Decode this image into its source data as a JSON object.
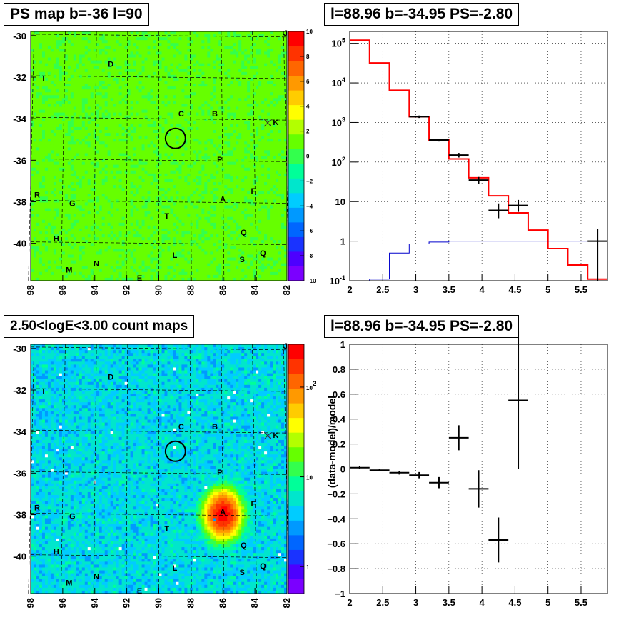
{
  "titles": {
    "map1": "PS map b=-36 l=90",
    "spec1": "l=88.96 b=-34.95 PS=-2.80",
    "map2": "2.50<logE<3.00 count maps",
    "spec2": "l=88.96 b=-34.95 PS=-2.80"
  },
  "chart_data": [
    {
      "type": "heatmap",
      "title": "PS map b=-36 l=90",
      "x_ticks": [
        "98",
        "96",
        "94",
        "92",
        "90",
        "88",
        "86",
        "84",
        "82"
      ],
      "y_ticks": [
        "-30",
        "-32",
        "-34",
        "-36",
        "-38",
        "-40"
      ],
      "xlim": [
        98,
        82
      ],
      "ylim": [
        -41.8,
        -29.8
      ],
      "colorbar_ticks": [
        "10",
        "8",
        "6",
        "4",
        "2",
        "0",
        "−2",
        "−4",
        "−6",
        "−8",
        "−10"
      ],
      "colorbar_range": [
        -10,
        10
      ],
      "typical_value": 1,
      "source_labels": [
        {
          "t": "I",
          "l": 97.2,
          "b": -32.2
        },
        {
          "t": "D",
          "l": 93.0,
          "b": -31.5
        },
        {
          "t": "C",
          "l": 88.6,
          "b": -33.9
        },
        {
          "t": "B",
          "l": 86.5,
          "b": -33.9
        },
        {
          "t": "K",
          "l": 82.7,
          "b": -34.3
        },
        {
          "t": "P",
          "l": 86.2,
          "b": -36.1
        },
        {
          "t": "F",
          "l": 84.1,
          "b": -37.6
        },
        {
          "t": "R",
          "l": 97.6,
          "b": -37.8
        },
        {
          "t": "A",
          "l": 86.0,
          "b": -38.0
        },
        {
          "t": "G",
          "l": 95.4,
          "b": -38.2
        },
        {
          "t": "T",
          "l": 89.5,
          "b": -38.8
        },
        {
          "t": "Q",
          "l": 84.7,
          "b": -39.6
        },
        {
          "t": "H",
          "l": 96.4,
          "b": -39.9
        },
        {
          "t": "L",
          "l": 89.0,
          "b": -40.7
        },
        {
          "t": "S",
          "l": 84.8,
          "b": -40.9
        },
        {
          "t": "Q",
          "l": 83.5,
          "b": -40.6
        },
        {
          "t": "N",
          "l": 93.9,
          "b": -41.1
        },
        {
          "t": "M",
          "l": 95.6,
          "b": -41.4
        },
        {
          "t": "E",
          "l": 91.2,
          "b": -41.8
        },
        {
          "t": "J",
          "l": 82.1,
          "b": -30.0
        }
      ],
      "circle": {
        "l": 88.96,
        "b": -34.95
      }
    },
    {
      "type": "line",
      "title": "l=88.96 b=-34.95 PS=-2.80",
      "x_ticks": [
        "2",
        "2.5",
        "3",
        "3.5",
        "4",
        "4.5",
        "5",
        "5.5"
      ],
      "y_ticks": [
        "10^-1",
        "1",
        "10",
        "10^2",
        "10^3",
        "10^4",
        "10^5"
      ],
      "xlim": [
        2.0,
        5.9
      ],
      "ylim": [
        0.1,
        200000
      ],
      "log_y": true,
      "grid": true,
      "series": [
        {
          "color": "#ff0000",
          "kind": "step",
          "edges": [
            2.0,
            2.3,
            2.6,
            2.9,
            3.2,
            3.5,
            3.8,
            4.1,
            4.4,
            4.7,
            5.0,
            5.3,
            5.6,
            5.9
          ],
          "values": [
            120000,
            32000,
            6500,
            1400,
            360,
            120,
            40,
            14,
            5.2,
            1.9,
            0.65,
            0.25,
            0.11
          ]
        },
        {
          "color": "#0000cc",
          "kind": "step",
          "edges": [
            2.0,
            2.3,
            2.6,
            2.9,
            3.2,
            3.5,
            5.9
          ],
          "values": [
            0.1,
            0.11,
            0.5,
            0.85,
            0.95,
            1.0
          ]
        },
        {
          "color": "#000000",
          "kind": "errorbar",
          "points": [
            {
              "x": 3.05,
              "y": 1400,
              "xerr": 0.15,
              "lo": 1300,
              "hi": 1500
            },
            {
              "x": 3.35,
              "y": 360,
              "xerr": 0.15,
              "lo": 330,
              "hi": 390
            },
            {
              "x": 3.65,
              "y": 150,
              "xerr": 0.15,
              "lo": 130,
              "hi": 170
            },
            {
              "x": 3.95,
              "y": 35,
              "xerr": 0.15,
              "lo": 28,
              "hi": 42
            },
            {
              "x": 4.25,
              "y": 6,
              "xerr": 0.15,
              "lo": 3.8,
              "hi": 9
            },
            {
              "x": 4.55,
              "y": 8,
              "xerr": 0.15,
              "lo": 5.5,
              "hi": 11
            },
            {
              "x": 5.75,
              "y": 1,
              "xerr": 0.15,
              "lo": 0.1,
              "hi": 2
            }
          ]
        }
      ]
    },
    {
      "type": "heatmap",
      "title": "2.50<logE<3.00 count maps",
      "x_ticks": [
        "98",
        "96",
        "94",
        "92",
        "90",
        "88",
        "86",
        "84",
        "82"
      ],
      "y_ticks": [
        "-30",
        "-32",
        "-34",
        "-36",
        "-38",
        "-40"
      ],
      "xlim": [
        98,
        82
      ],
      "ylim": [
        -41.8,
        -29.8
      ],
      "colorbar_ticks": [
        "10^2",
        "10",
        "1"
      ],
      "colorbar_range": [
        0.5,
        300
      ],
      "log_z": true,
      "background_level": 5,
      "peak": {
        "l": 86.0,
        "b": -38.0,
        "value": 250
      },
      "circle": {
        "l": 88.96,
        "b": -34.95
      }
    },
    {
      "type": "scatter",
      "title": "l=88.96 b=-34.95 PS=-2.80",
      "ylabel": "(data-model)/model",
      "x_ticks": [
        "2",
        "2.5",
        "3",
        "3.5",
        "4",
        "4.5",
        "5",
        "5.5"
      ],
      "y_ticks": [
        "−1",
        "−0.8",
        "−0.6",
        "−0.4",
        "−0.2",
        "0",
        "0.2",
        "0.4",
        "0.6",
        "0.8",
        "1"
      ],
      "xlim": [
        2.0,
        5.9
      ],
      "ylim": [
        -1,
        1
      ],
      "grid": true,
      "points": [
        {
          "x": 2.15,
          "y": 0.01,
          "xerr": 0.15,
          "yerr": 0.01
        },
        {
          "x": 2.45,
          "y": -0.01,
          "xerr": 0.15,
          "yerr": 0.01
        },
        {
          "x": 2.75,
          "y": -0.03,
          "xerr": 0.15,
          "yerr": 0.015
        },
        {
          "x": 3.05,
          "y": -0.05,
          "xerr": 0.15,
          "yerr": 0.025
        },
        {
          "x": 3.35,
          "y": -0.11,
          "xerr": 0.15,
          "yerr": 0.045
        },
        {
          "x": 3.65,
          "y": 0.25,
          "xerr": 0.15,
          "yerr": 0.1
        },
        {
          "x": 3.95,
          "y": -0.16,
          "xerr": 0.15,
          "yerr": 0.15
        },
        {
          "x": 4.25,
          "y": -0.57,
          "xerr": 0.15,
          "yerr": 0.18
        },
        {
          "x": 4.55,
          "y": 0.55,
          "xerr": 0.15,
          "yerr": 0.55
        }
      ]
    }
  ]
}
